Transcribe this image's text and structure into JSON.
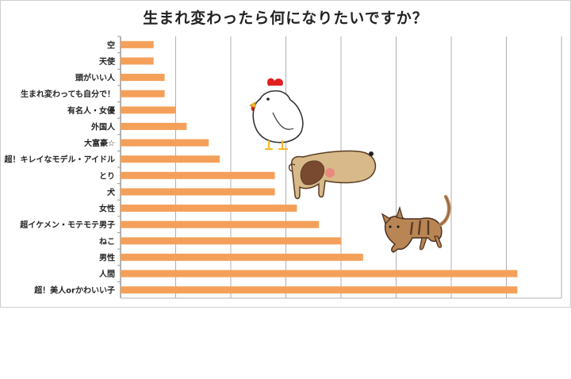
{
  "chart_data": {
    "type": "bar",
    "orientation": "horizontal",
    "title": "生まれ変わったら何になりたいですか？",
    "categories": [
      "空",
      "天使",
      "頭がいい人",
      "生まれ変わっても自分で！",
      "有名人・女優",
      "外国人",
      "大富豪☆",
      "超！キレイなモデル・アイドル",
      "とり",
      "犬",
      "女性",
      "超イケメン・モテモテ男子",
      "ねこ",
      "男性",
      "人間",
      "超！美人orかわいい子"
    ],
    "values": [
      3,
      3,
      4,
      4,
      5,
      6,
      8,
      9,
      14,
      14,
      16,
      18,
      20,
      22,
      36,
      36
    ],
    "xlim": [
      0,
      40
    ],
    "grid": "vertical",
    "bar_color": "#F4A05A",
    "axis_color": "#999999",
    "grid_color": "#b0b0b0",
    "xlabel": "",
    "ylabel": ""
  },
  "illustrations": [
    "chicken-illustration",
    "dog-illustration",
    "cat-illustration"
  ]
}
